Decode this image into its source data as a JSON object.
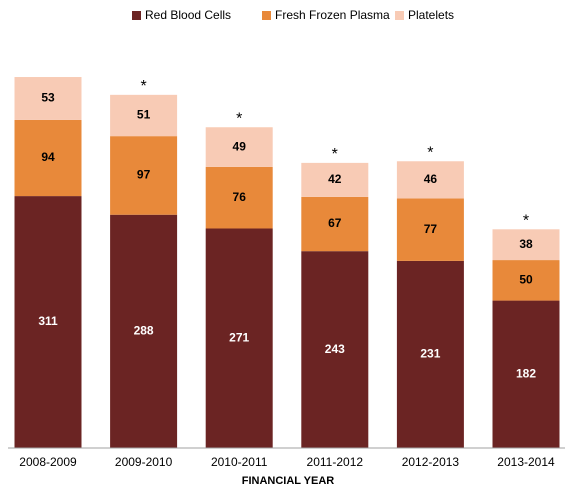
{
  "chart_data": {
    "type": "stacked_bar",
    "x_label": "FINANCIAL YEAR",
    "categories": [
      "2008-2009",
      "2009-2010",
      "2010-2011",
      "2011-2012",
      "2012-2013",
      "2013-2014"
    ],
    "series": [
      {
        "name": "Red Blood Cells",
        "color": "#6b2423",
        "label_color": "#ffffff",
        "values": [
          311,
          288,
          271,
          243,
          231,
          182
        ]
      },
      {
        "name": "Fresh Frozen Plasma",
        "color": "#e8893a",
        "label_color": "#000000",
        "values": [
          94,
          97,
          76,
          67,
          77,
          50
        ]
      },
      {
        "name": "Platelets",
        "color": "#f8cbb5",
        "label_color": "#000000",
        "values": [
          53,
          51,
          49,
          42,
          46,
          38
        ]
      }
    ],
    "annotations": [
      {
        "category": 1,
        "text": "*"
      },
      {
        "category": 2,
        "text": "*"
      },
      {
        "category": 3,
        "text": "*"
      },
      {
        "category": 4,
        "text": "*"
      },
      {
        "category": 5,
        "text": "*"
      }
    ],
    "legend": "top"
  }
}
